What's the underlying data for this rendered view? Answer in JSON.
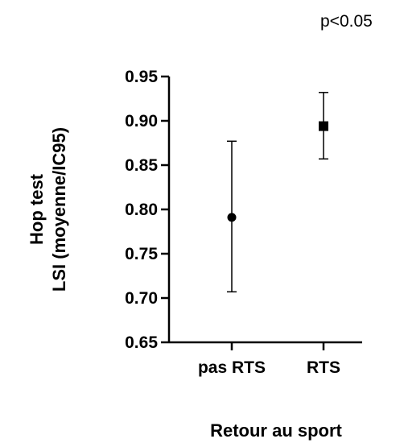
{
  "chart_data": {
    "type": "scatter",
    "categories": [
      "pas RTS",
      "RTS"
    ],
    "points": [
      {
        "category": "pas RTS",
        "mean": 0.791,
        "ci_low": 0.707,
        "ci_high": 0.877,
        "marker": "circle"
      },
      {
        "category": "RTS",
        "mean": 0.894,
        "ci_low": 0.857,
        "ci_high": 0.932,
        "marker": "square"
      }
    ],
    "ylabel_line1": "Hop test",
    "ylabel_line2": "LSI (moyenne/IC95)",
    "xlabel": "Retour au sport",
    "ylim": [
      0.65,
      0.95
    ],
    "yticks": [
      "0.65",
      "0.70",
      "0.75",
      "0.80",
      "0.85",
      "0.90",
      "0.95"
    ],
    "annotation": "p<0.05",
    "grid": false,
    "color": "#000000"
  }
}
